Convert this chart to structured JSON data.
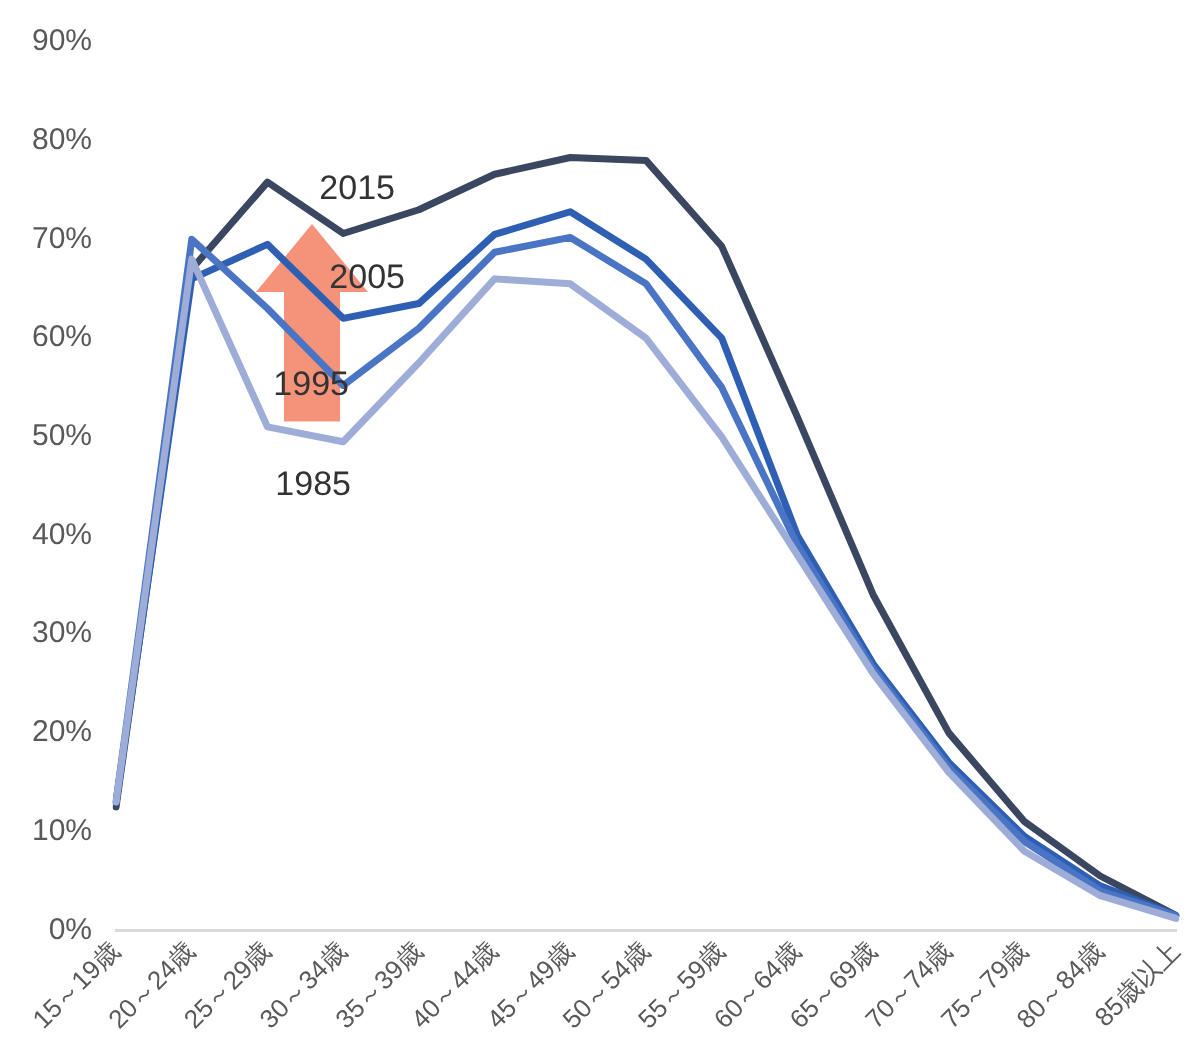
{
  "chart_data": {
    "type": "line",
    "categories": [
      "15～19歳",
      "20～24歳",
      "25～29歳",
      "30～34歳",
      "35～39歳",
      "40～44歳",
      "45～49歳",
      "50～54歳",
      "55～59歳",
      "60～64歳",
      "65～69歳",
      "70～74歳",
      "75～79歳",
      "80～84歳",
      "85歳以上"
    ],
    "series": [
      {
        "name": "1985",
        "color": "#9eadd8",
        "values": [
          13,
          68,
          51,
          49.5,
          57.5,
          66,
          65.5,
          60,
          50,
          38,
          26,
          16,
          8,
          3.5,
          1.2
        ]
      },
      {
        "name": "1995",
        "color": "#4a74c4",
        "values": [
          13,
          70,
          63,
          55.2,
          61,
          68.7,
          70.2,
          65.5,
          55,
          39,
          26.5,
          16.5,
          9,
          4,
          1.5
        ]
      },
      {
        "name": "2005",
        "color": "#2f5fb3",
        "values": [
          13,
          66,
          69.5,
          62,
          63.5,
          70.5,
          72.8,
          68,
          60,
          40,
          27,
          17,
          9.5,
          4.5,
          1.5
        ]
      },
      {
        "name": "2015",
        "color": "#3b4660",
        "values": [
          12.5,
          67,
          75.8,
          70.6,
          73,
          76.6,
          78.3,
          78,
          69.3,
          52,
          34,
          20,
          11,
          5.5,
          1.5
        ]
      }
    ],
    "ylim": [
      0,
      90
    ],
    "yticks": [
      {
        "value": 0,
        "label": "0%"
      },
      {
        "value": 10,
        "label": "10%"
      },
      {
        "value": 20,
        "label": "20%"
      },
      {
        "value": 30,
        "label": "30%"
      },
      {
        "value": 40,
        "label": "40%"
      },
      {
        "value": 50,
        "label": "50%"
      },
      {
        "value": 60,
        "label": "60%"
      },
      {
        "value": 70,
        "label": "70%"
      },
      {
        "value": 80,
        "label": "80%"
      },
      {
        "value": 90,
        "label": "90%"
      }
    ],
    "grid": false,
    "legend": false,
    "marker": "none",
    "line_style": "solid"
  }
}
